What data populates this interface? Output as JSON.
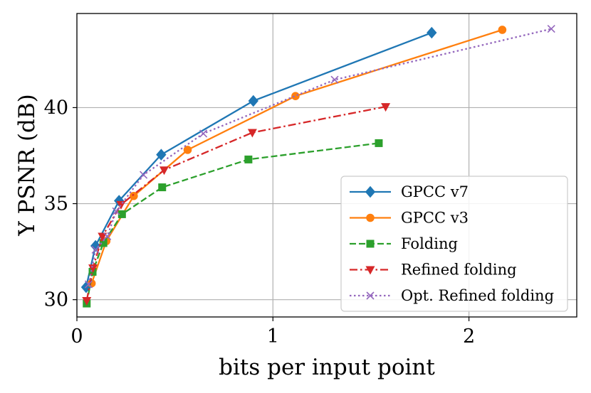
{
  "chart_data": {
    "type": "line",
    "title": "",
    "xlabel": "bits per input point",
    "ylabel": "Y PSNR (dB)",
    "xlim": [
      0,
      2.55
    ],
    "ylim": [
      29.1,
      44.9
    ],
    "xticks": [
      0,
      1,
      2
    ],
    "xtick_labels": [
      "0",
      "1",
      "2"
    ],
    "yticks": [
      30,
      35,
      40
    ],
    "ytick_labels": [
      "30",
      "35",
      "40"
    ],
    "grid": true,
    "legend_position": "lower-right",
    "series": [
      {
        "name": "GPCC v7",
        "color": "#1f77b4",
        "linestyle": "solid",
        "marker": "diamond",
        "x": [
          0.047,
          0.095,
          0.215,
          0.43,
          0.9,
          1.81
        ],
        "y": [
          30.65,
          32.8,
          35.15,
          37.55,
          40.35,
          43.9
        ]
      },
      {
        "name": "GPCC v3",
        "color": "#ff7f0e",
        "linestyle": "solid",
        "marker": "circle",
        "x": [
          0.075,
          0.15,
          0.29,
          0.565,
          1.115,
          2.17
        ],
        "y": [
          30.85,
          33.05,
          35.4,
          37.8,
          40.6,
          44.05
        ]
      },
      {
        "name": "Folding",
        "color": "#2ca02c",
        "linestyle": "dashed",
        "marker": "square",
        "x": [
          0.05,
          0.08,
          0.135,
          0.23,
          0.435,
          0.875,
          1.54
        ],
        "y": [
          29.8,
          31.45,
          32.95,
          34.45,
          35.85,
          37.3,
          38.15
        ]
      },
      {
        "name": "Refined folding",
        "color": "#d62728",
        "linestyle": "dashdot",
        "marker": "triangle-down",
        "x": [
          0.05,
          0.082,
          0.13,
          0.225,
          0.445,
          0.895,
          1.575
        ],
        "y": [
          29.95,
          31.65,
          33.3,
          34.95,
          36.75,
          38.7,
          40.05
        ]
      },
      {
        "name": "Opt. Refined folding",
        "color": "#9467bd",
        "linestyle": "dotted",
        "marker": "x",
        "x": [
          0.06,
          0.095,
          0.155,
          0.2,
          0.34,
          0.645,
          1.315,
          2.42
        ],
        "y": [
          30.8,
          32.6,
          33.3,
          34.6,
          36.5,
          38.65,
          41.45,
          44.1
        ]
      }
    ]
  }
}
